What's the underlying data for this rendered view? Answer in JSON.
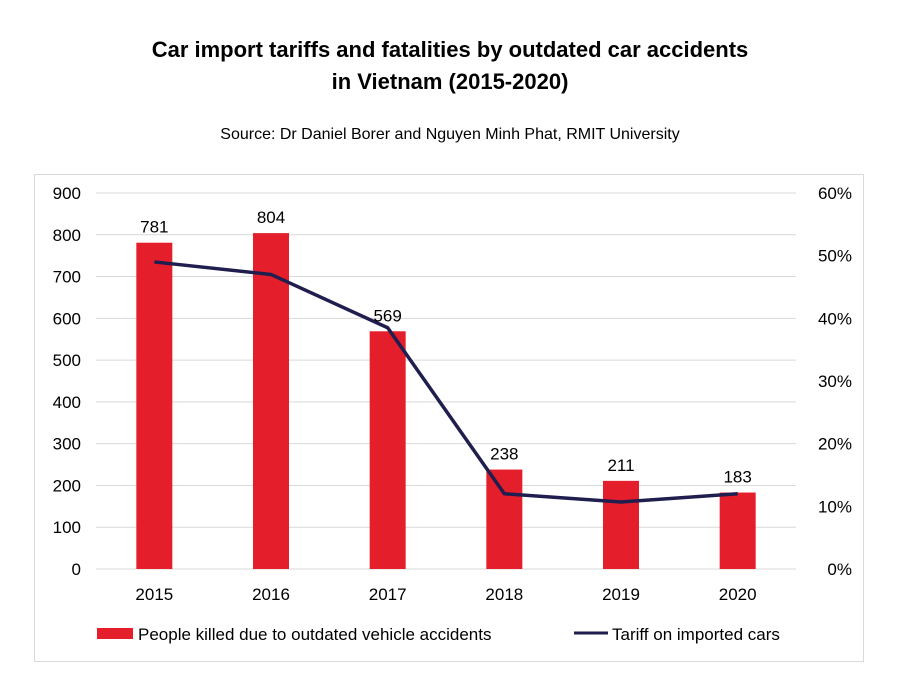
{
  "chart_data": {
    "type": "bar",
    "title_line1": "Car import tariffs and fatalities by outdated car accidents",
    "title_line2": "in Vietnam (2015-2020)",
    "subtitle": "Source: Dr Daniel Borer and Nguyen Minh Phat, RMIT University",
    "categories": [
      "2015",
      "2016",
      "2017",
      "2018",
      "2019",
      "2020"
    ],
    "series": [
      {
        "name": "People killed due to outdated vehicle accidents",
        "kind": "bar",
        "axis": "left",
        "values": [
          781,
          804,
          569,
          238,
          211,
          183
        ],
        "color": "#e41e2b"
      },
      {
        "name": "Tariff on imported cars",
        "kind": "line",
        "axis": "right",
        "values": [
          49,
          47,
          38.5,
          12,
          10.7,
          12
        ],
        "color": "#1f1e4e"
      }
    ],
    "data_labels": [
      "781",
      "804",
      "569",
      "238",
      "211",
      "183"
    ],
    "y_left": {
      "min": 0,
      "max": 900,
      "ticks": [
        "0",
        "100",
        "200",
        "300",
        "400",
        "500",
        "600",
        "700",
        "800",
        "900"
      ]
    },
    "y_right": {
      "min": 0,
      "max": 60,
      "ticks": [
        "0%",
        "10%",
        "20%",
        "30%",
        "40%",
        "50%",
        "60%"
      ]
    },
    "grid": true,
    "legend_position": "bottom"
  }
}
